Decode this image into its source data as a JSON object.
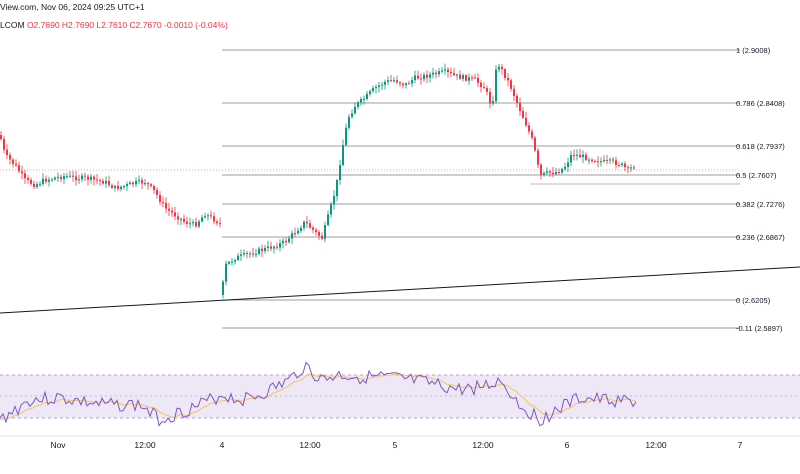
{
  "header": {
    "line1": "View.com, Nov 06, 2024 09:25 UTC+1",
    "symbol": "LCOM",
    "ohlc": "O2.7690 H2.7690 L2.7610 C2.7670 -0.0010 (-0.04%)"
  },
  "colors": {
    "up": "#089981",
    "down": "#f23645",
    "fib_line": "#787b86",
    "trendline": "#131722",
    "rsi_line": "#7e57c2",
    "rsi_ma": "#f7c55a",
    "rsi_band": "#ede7f6"
  },
  "fib_levels": [
    {
      "label": "1 (2.9008)",
      "value": 2.9008
    },
    {
      "label": "0.786 (2.8408)",
      "value": 2.8408
    },
    {
      "label": "0.618 (2.7937)",
      "value": 2.7937
    },
    {
      "label": "0.5 (2.7607)",
      "value": 2.7607
    },
    {
      "label": "0.382 (2.7276)",
      "value": 2.7276
    },
    {
      "label": "0.236 (2.6867)",
      "value": 2.6867
    },
    {
      "label": "0 (2.6205)",
      "value": 2.6205
    },
    {
      "label": "-0.11 (2.5897)",
      "value": 2.5897
    }
  ],
  "x_axis": {
    "labels": [
      "Nov",
      "12:00",
      "4",
      "12:00",
      "5",
      "12:00",
      "6",
      "12:00",
      "7"
    ]
  }
}
